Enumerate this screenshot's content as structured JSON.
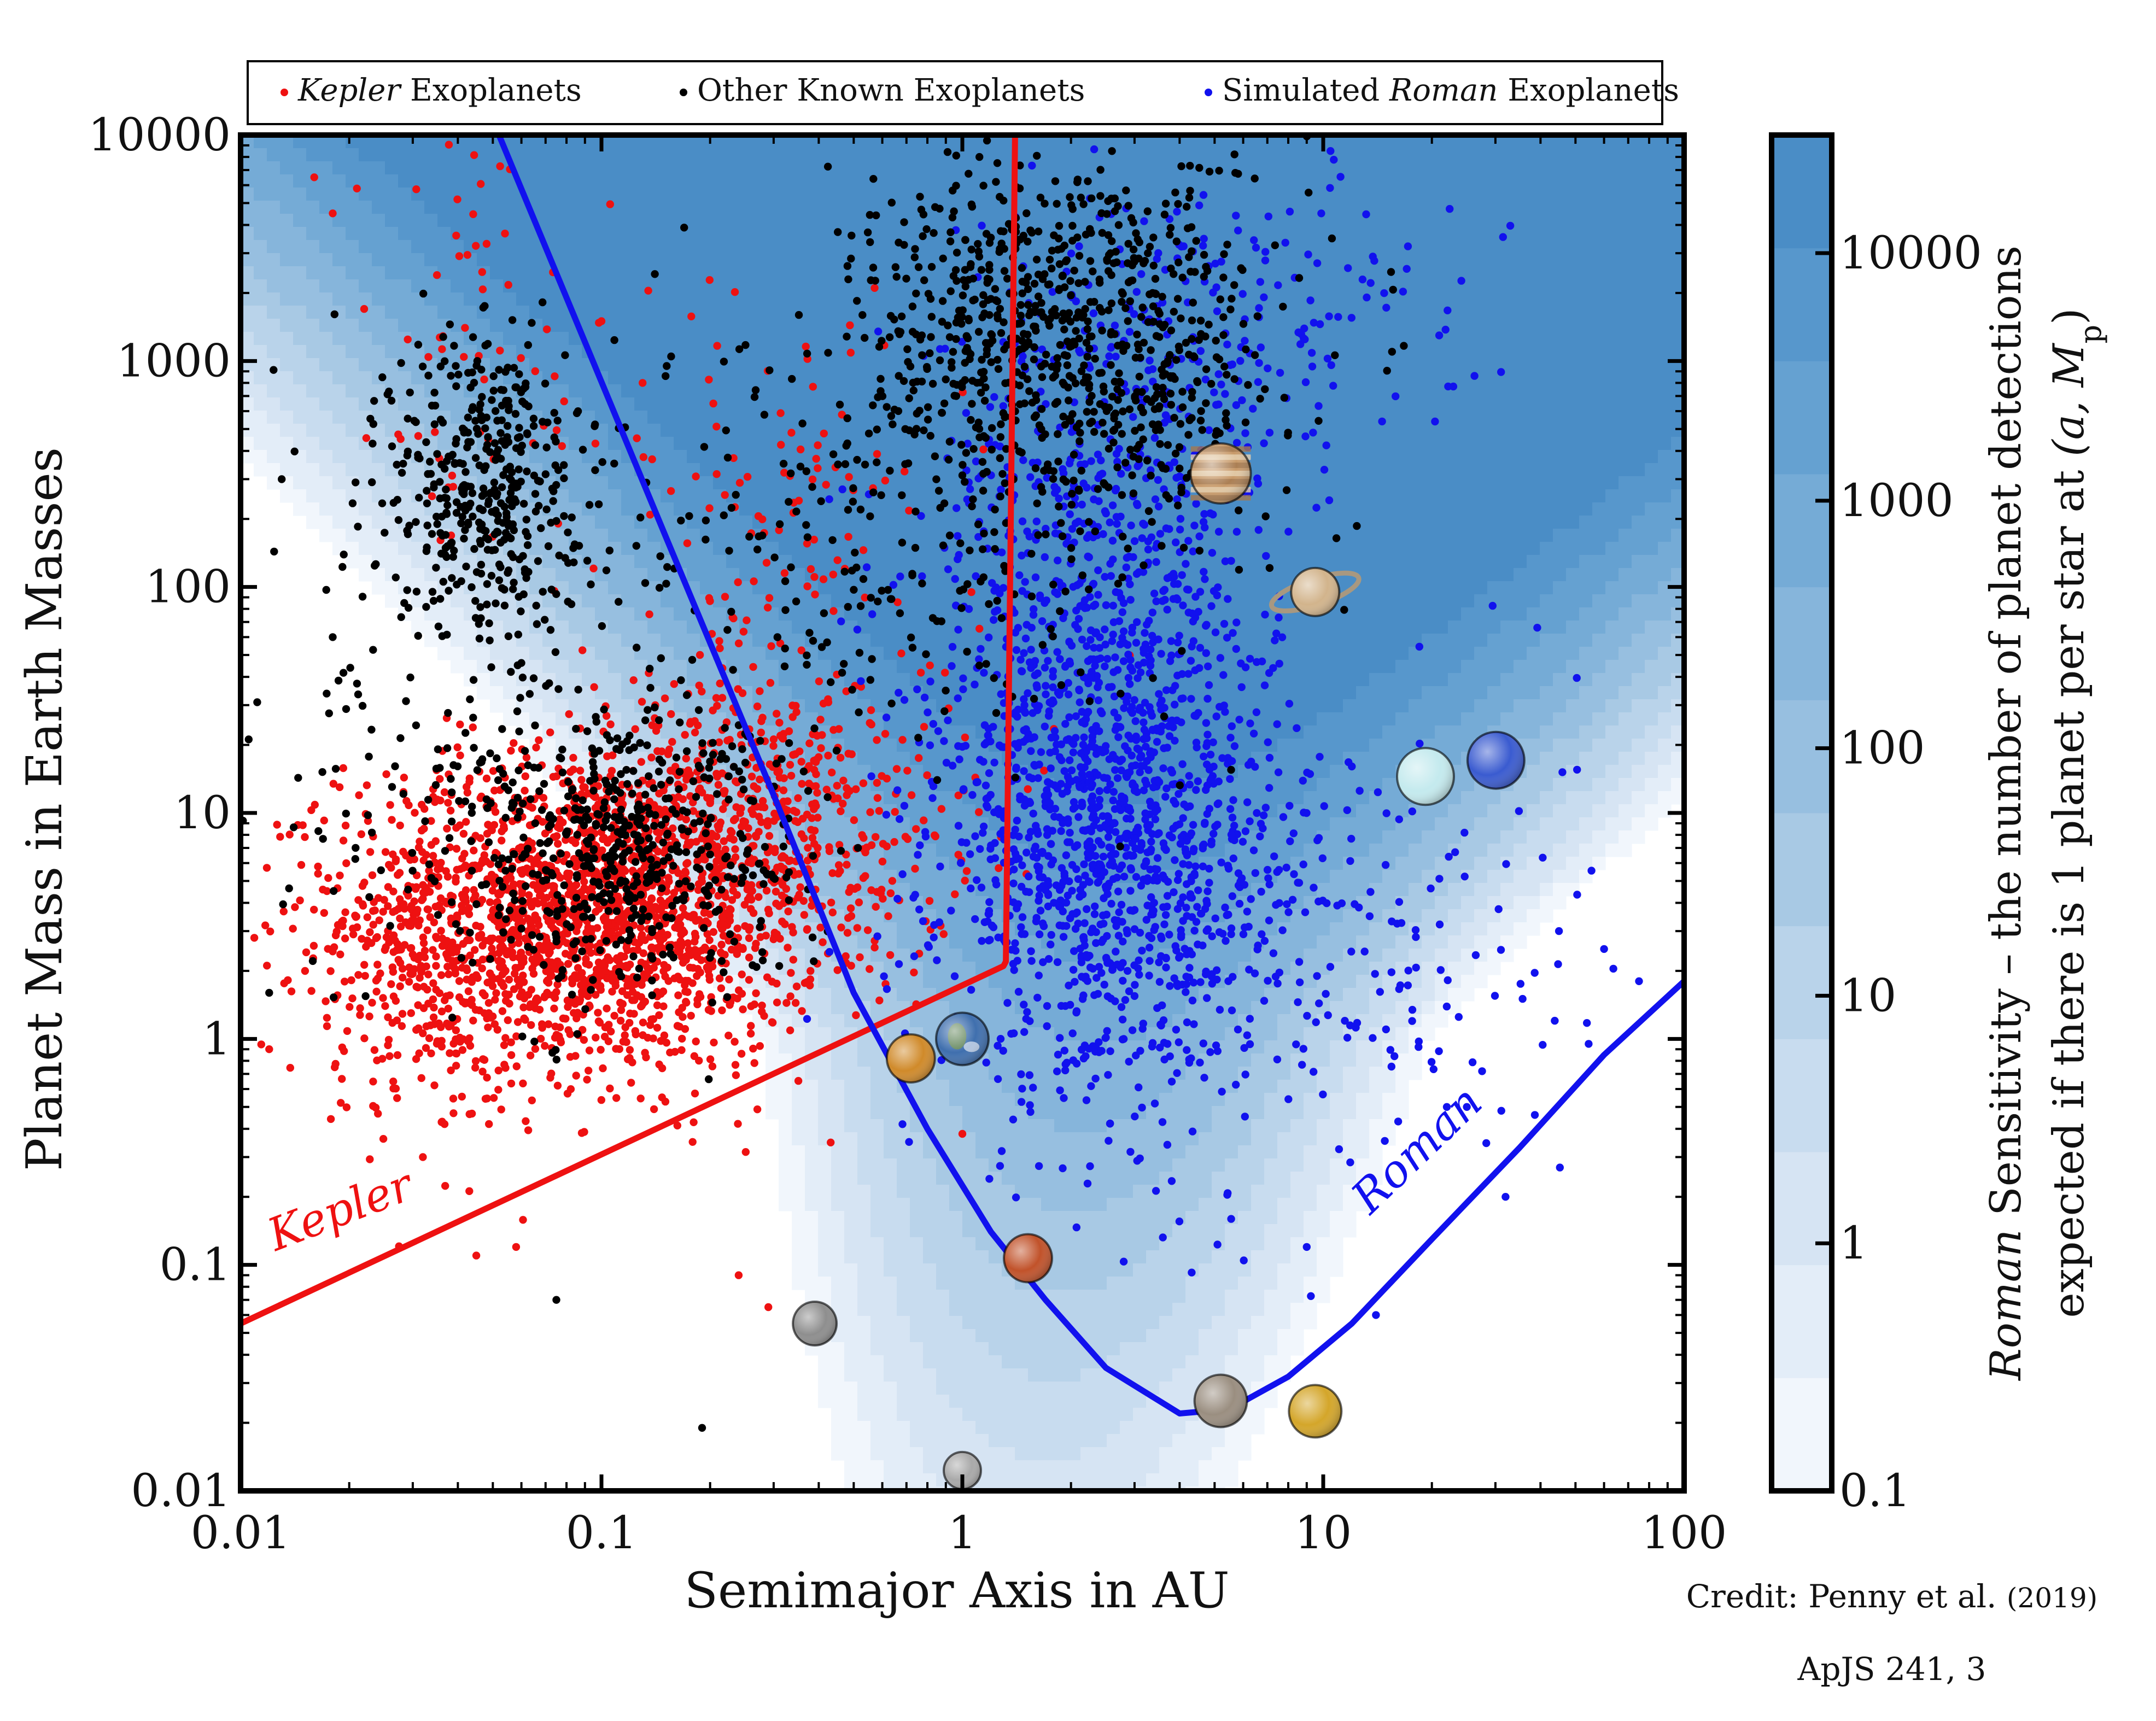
{
  "chart_data": {
    "type": "scatter",
    "xscale": "log",
    "yscale": "log",
    "xlim": [
      0.01,
      100
    ],
    "ylim": [
      0.01,
      10000
    ],
    "xlabel": "Semimajor Axis in AU",
    "ylabel": "Planet Mass in Earth Masses",
    "x_ticks": [
      {
        "value": 0.01,
        "label": "0.01"
      },
      {
        "value": 0.1,
        "label": "0.1"
      },
      {
        "value": 1,
        "label": "1"
      },
      {
        "value": 10,
        "label": "10"
      },
      {
        "value": 100,
        "label": "100"
      }
    ],
    "y_ticks": [
      {
        "value": 0.01,
        "label": "0.01"
      },
      {
        "value": 0.1,
        "label": "0.1"
      },
      {
        "value": 1,
        "label": "1"
      },
      {
        "value": 10,
        "label": "10"
      },
      {
        "value": 100,
        "label": "100"
      },
      {
        "value": 1000,
        "label": "1000"
      },
      {
        "value": 10000,
        "label": "10000"
      }
    ],
    "legend": {
      "placement": "top",
      "entries": [
        {
          "series": "kepler",
          "prefix": "",
          "italic": "Kepler",
          "suffix": " Exoplanets"
        },
        {
          "series": "other",
          "prefix": "Other Known Exoplanets",
          "italic": "",
          "suffix": ""
        },
        {
          "series": "roman",
          "prefix": "Simulated ",
          "italic": "Roman",
          "suffix": " Exoplanets"
        }
      ]
    },
    "series": [
      {
        "id": "kepler",
        "name": "Kepler Exoplanets",
        "color": "#ee1111",
        "clusters": [
          {
            "count": 1900,
            "x_log_center": -1.05,
            "x_log_sd": 0.33,
            "y_log_center": 0.55,
            "y_log_sd": 0.35
          },
          {
            "count": 450,
            "x_log_center": -0.55,
            "x_log_sd": 0.28,
            "y_log_center": 1.0,
            "y_log_sd": 0.32
          },
          {
            "count": 180,
            "x_log_center": -1.45,
            "x_log_sd": 0.22,
            "y_log_center": 0.2,
            "y_log_sd": 0.35
          },
          {
            "count": 120,
            "x_log_center": -0.5,
            "x_log_sd": 0.25,
            "y_log_center": 2.2,
            "y_log_sd": 0.55
          },
          {
            "count": 60,
            "x_log_center": -1.35,
            "x_log_sd": 0.2,
            "y_log_center": 3.0,
            "y_log_sd": 0.6
          }
        ],
        "points": [
          [
            0.016,
            6500
          ],
          [
            0.018,
            4500
          ],
          [
            0.021,
            5800
          ],
          [
            0.022,
            1700
          ],
          [
            0.035,
            2400
          ],
          [
            0.1,
            1500
          ],
          [
            0.13,
            800
          ],
          [
            0.29,
            0.065
          ],
          [
            0.24,
            0.09
          ],
          [
            0.032,
            0.3
          ],
          [
            0.045,
            0.11
          ],
          [
            1.0,
            0.38
          ],
          [
            0.012,
            0.9
          ],
          [
            0.058,
            0.12
          ]
        ]
      },
      {
        "id": "other",
        "name": "Other Known Exoplanets",
        "color": "#000000",
        "clusters": [
          {
            "count": 420,
            "x_log_center": -1.32,
            "x_log_sd": 0.13,
            "y_log_center": 2.45,
            "y_log_sd": 0.35
          },
          {
            "count": 520,
            "x_log_center": -0.95,
            "x_log_sd": 0.25,
            "y_log_center": 0.85,
            "y_log_sd": 0.3
          },
          {
            "count": 820,
            "x_log_center": 0.3,
            "x_log_sd": 0.28,
            "y_log_center": 3.1,
            "y_log_sd": 0.42
          },
          {
            "count": 260,
            "x_log_center": -0.2,
            "x_log_sd": 0.4,
            "y_log_center": 2.2,
            "y_log_sd": 0.6
          },
          {
            "count": 120,
            "x_log_center": -1.5,
            "x_log_sd": 0.3,
            "y_log_center": 1.4,
            "y_log_sd": 0.7
          }
        ],
        "points": [
          [
            0.075,
            0.07
          ],
          [
            0.19,
            0.019
          ],
          [
            0.012,
            1.6
          ],
          [
            0.013,
            300
          ],
          [
            0.018,
            60
          ]
        ]
      },
      {
        "id": "roman",
        "name": "Simulated Roman Exoplanets",
        "color": "#1111ee",
        "clusters": [
          {
            "count": 1300,
            "x_log_center": 0.4,
            "x_log_sd": 0.23,
            "y_log_center": 0.9,
            "y_log_sd": 0.55
          },
          {
            "count": 500,
            "x_log_center": 0.4,
            "x_log_sd": 0.25,
            "y_log_center": 2.25,
            "y_log_sd": 0.55
          },
          {
            "count": 160,
            "x_log_center": 0.75,
            "x_log_sd": 0.35,
            "y_log_center": 3.2,
            "y_log_sd": 0.35
          },
          {
            "count": 200,
            "x_log_center": 1.0,
            "x_log_sd": 0.35,
            "y_log_center": 0.4,
            "y_log_sd": 0.55
          }
        ],
        "points": [
          [
            75,
            1.8
          ],
          [
            60,
            2.5
          ],
          [
            45,
            3.0
          ],
          [
            22,
            0.5
          ],
          [
            32,
            0.2
          ],
          [
            14,
            0.06
          ],
          [
            9,
            0.12
          ],
          [
            25,
            0.5
          ]
        ]
      }
    ],
    "curves": [
      {
        "name": "Kepler",
        "label": "Kepler",
        "color": "#ee1111",
        "points": [
          [
            0.01,
            0.055
          ],
          [
            1.3,
            2.1
          ],
          [
            1.32,
            2.2
          ],
          [
            1.4,
            10000
          ]
        ]
      },
      {
        "name": "Roman",
        "label": "Roman",
        "color": "#1111ee",
        "points": [
          [
            0.052,
            10000
          ],
          [
            0.15,
            170
          ],
          [
            0.3,
            12
          ],
          [
            0.5,
            1.6
          ],
          [
            0.8,
            0.4
          ],
          [
            1.2,
            0.14
          ],
          [
            1.7,
            0.07
          ],
          [
            2.5,
            0.035
          ],
          [
            4.0,
            0.022
          ],
          [
            5.5,
            0.023
          ],
          [
            8.0,
            0.032
          ],
          [
            12.0,
            0.055
          ],
          [
            20.0,
            0.13
          ],
          [
            35.0,
            0.33
          ],
          [
            60.0,
            0.85
          ],
          [
            100.0,
            1.8
          ]
        ]
      }
    ],
    "solar_system_planets": [
      {
        "name": "Mercury",
        "a": 0.39,
        "m": 0.055,
        "color": "#8e8e8e",
        "icon": "mercury-icon"
      },
      {
        "name": "Venus",
        "a": 0.72,
        "m": 0.82,
        "color": "#d08a2a",
        "icon": "venus-icon"
      },
      {
        "name": "Earth",
        "a": 1.0,
        "m": 1.0,
        "color": "#3f6fae",
        "icon": "earth-icon"
      },
      {
        "name": "Moon",
        "a": 1.0,
        "m": 0.0123,
        "color": "#a9a9a9",
        "icon": "moon-icon"
      },
      {
        "name": "Mars",
        "a": 1.52,
        "m": 0.107,
        "color": "#c1522a",
        "icon": "mars-icon"
      },
      {
        "name": "Jupiter",
        "a": 5.2,
        "m": 318,
        "color": "#c89a6a",
        "icon": "jupiter-icon"
      },
      {
        "name": "Ganymede",
        "a": 5.2,
        "m": 0.025,
        "color": "#9a8e80",
        "icon": "ganymede-icon"
      },
      {
        "name": "Saturn",
        "a": 9.5,
        "m": 95,
        "color": "#d2b48c",
        "icon": "saturn-icon"
      },
      {
        "name": "Titan",
        "a": 9.5,
        "m": 0.0225,
        "color": "#d4a62a",
        "icon": "titan-icon"
      },
      {
        "name": "Uranus",
        "a": 19.2,
        "m": 14.5,
        "color": "#c4eaee",
        "icon": "uranus-icon"
      },
      {
        "name": "Neptune",
        "a": 30.1,
        "m": 17.1,
        "color": "#3a5bd0",
        "icon": "neptune-icon"
      }
    ],
    "colorbar": {
      "label_italic": "Roman",
      "label_line1_rest": " Sensitivity – the number of planet detections",
      "label_line2": "expected if there is 1 planet per star at ",
      "label_line2_math": "(a, M",
      "label_line2_sub": "p",
      "label_line2_close": ")",
      "scale": "log",
      "range": [
        0.1,
        30000
      ],
      "ticks": [
        {
          "value": 0.1,
          "label": "0.1"
        },
        {
          "value": 1,
          "label": "1"
        },
        {
          "value": 10,
          "label": "10"
        },
        {
          "value": 100,
          "label": "100"
        },
        {
          "value": 1000,
          "label": "1000"
        },
        {
          "value": 10000,
          "label": "10000"
        }
      ],
      "colors": [
        "#f1f6fc",
        "#e3edf8",
        "#d6e4f3",
        "#c8dcef",
        "#b9d3ea",
        "#a8c9e4",
        "#97bfe0",
        "#86b5db",
        "#75abd6",
        "#65a1d1",
        "#5797cc",
        "#4a8dc6"
      ]
    }
  },
  "credit": {
    "line1_text": "Credit: Penny et al. ",
    "line1_year": "(2019)",
    "line2": "ApJS 241, 3"
  }
}
